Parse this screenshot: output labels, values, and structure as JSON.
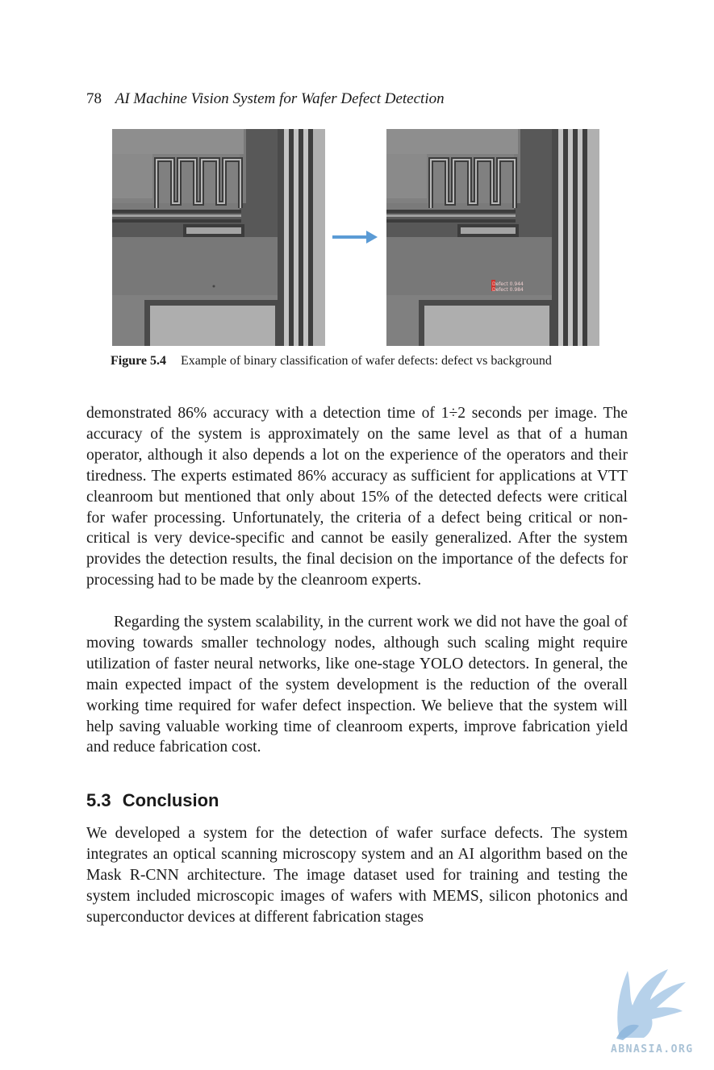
{
  "header": {
    "page_number": "78",
    "running_title": "AI Machine Vision System for Wafer Defect Detection"
  },
  "figure": {
    "label": "Figure 5.4",
    "caption": "Example of binary classification of wafer defects: defect vs background",
    "detections": [
      "Defect 0.944",
      "Defect 0.984"
    ],
    "arrow_color": "#5b9bd5",
    "detection_color": "#d0322c"
  },
  "body": {
    "paragraph_1": "demonstrated 86% accuracy with a detection time of 1÷2 seconds per image. The accuracy of the system is approximately on the same level as that of a human operator, although it also depends a lot on the experience of the operators and their tiredness. The experts estimated 86% accuracy as sufficient for applications at VTT cleanroom but mentioned that only about 15% of the detected defects were critical for wafer processing. Unfortunately, the criteria of a defect being critical or non-critical is very device-specific and cannot be easily generalized. After the system provides the detection results, the final decision on the importance of the defects for processing had to be made by the cleanroom experts.",
    "paragraph_2": "Regarding the system scalability, in the current work we did not have the goal of moving towards smaller technology nodes, although such scaling might require utilization of faster neural networks, like one-stage YOLO detectors. In general, the main expected impact of the system development is the reduction of the overall working time required for wafer defect inspection. We believe that the system will help saving valuable working time of cleanroom experts, improve fabrication yield and reduce fabrication cost.",
    "paragraph_3": "We developed a system for the detection of wafer surface defects. The system integrates an optical scanning microscopy system and an AI algorithm based on the Mask R-CNN architecture. The image dataset used for training and testing the system included microscopic images of wafers with MEMS, silicon photonics and superconductor devices at different fabrication stages"
  },
  "section": {
    "number": "5.3",
    "title": "Conclusion"
  },
  "watermark": {
    "text": "ABNASIA.ORG",
    "color": "#a9c2d6"
  }
}
